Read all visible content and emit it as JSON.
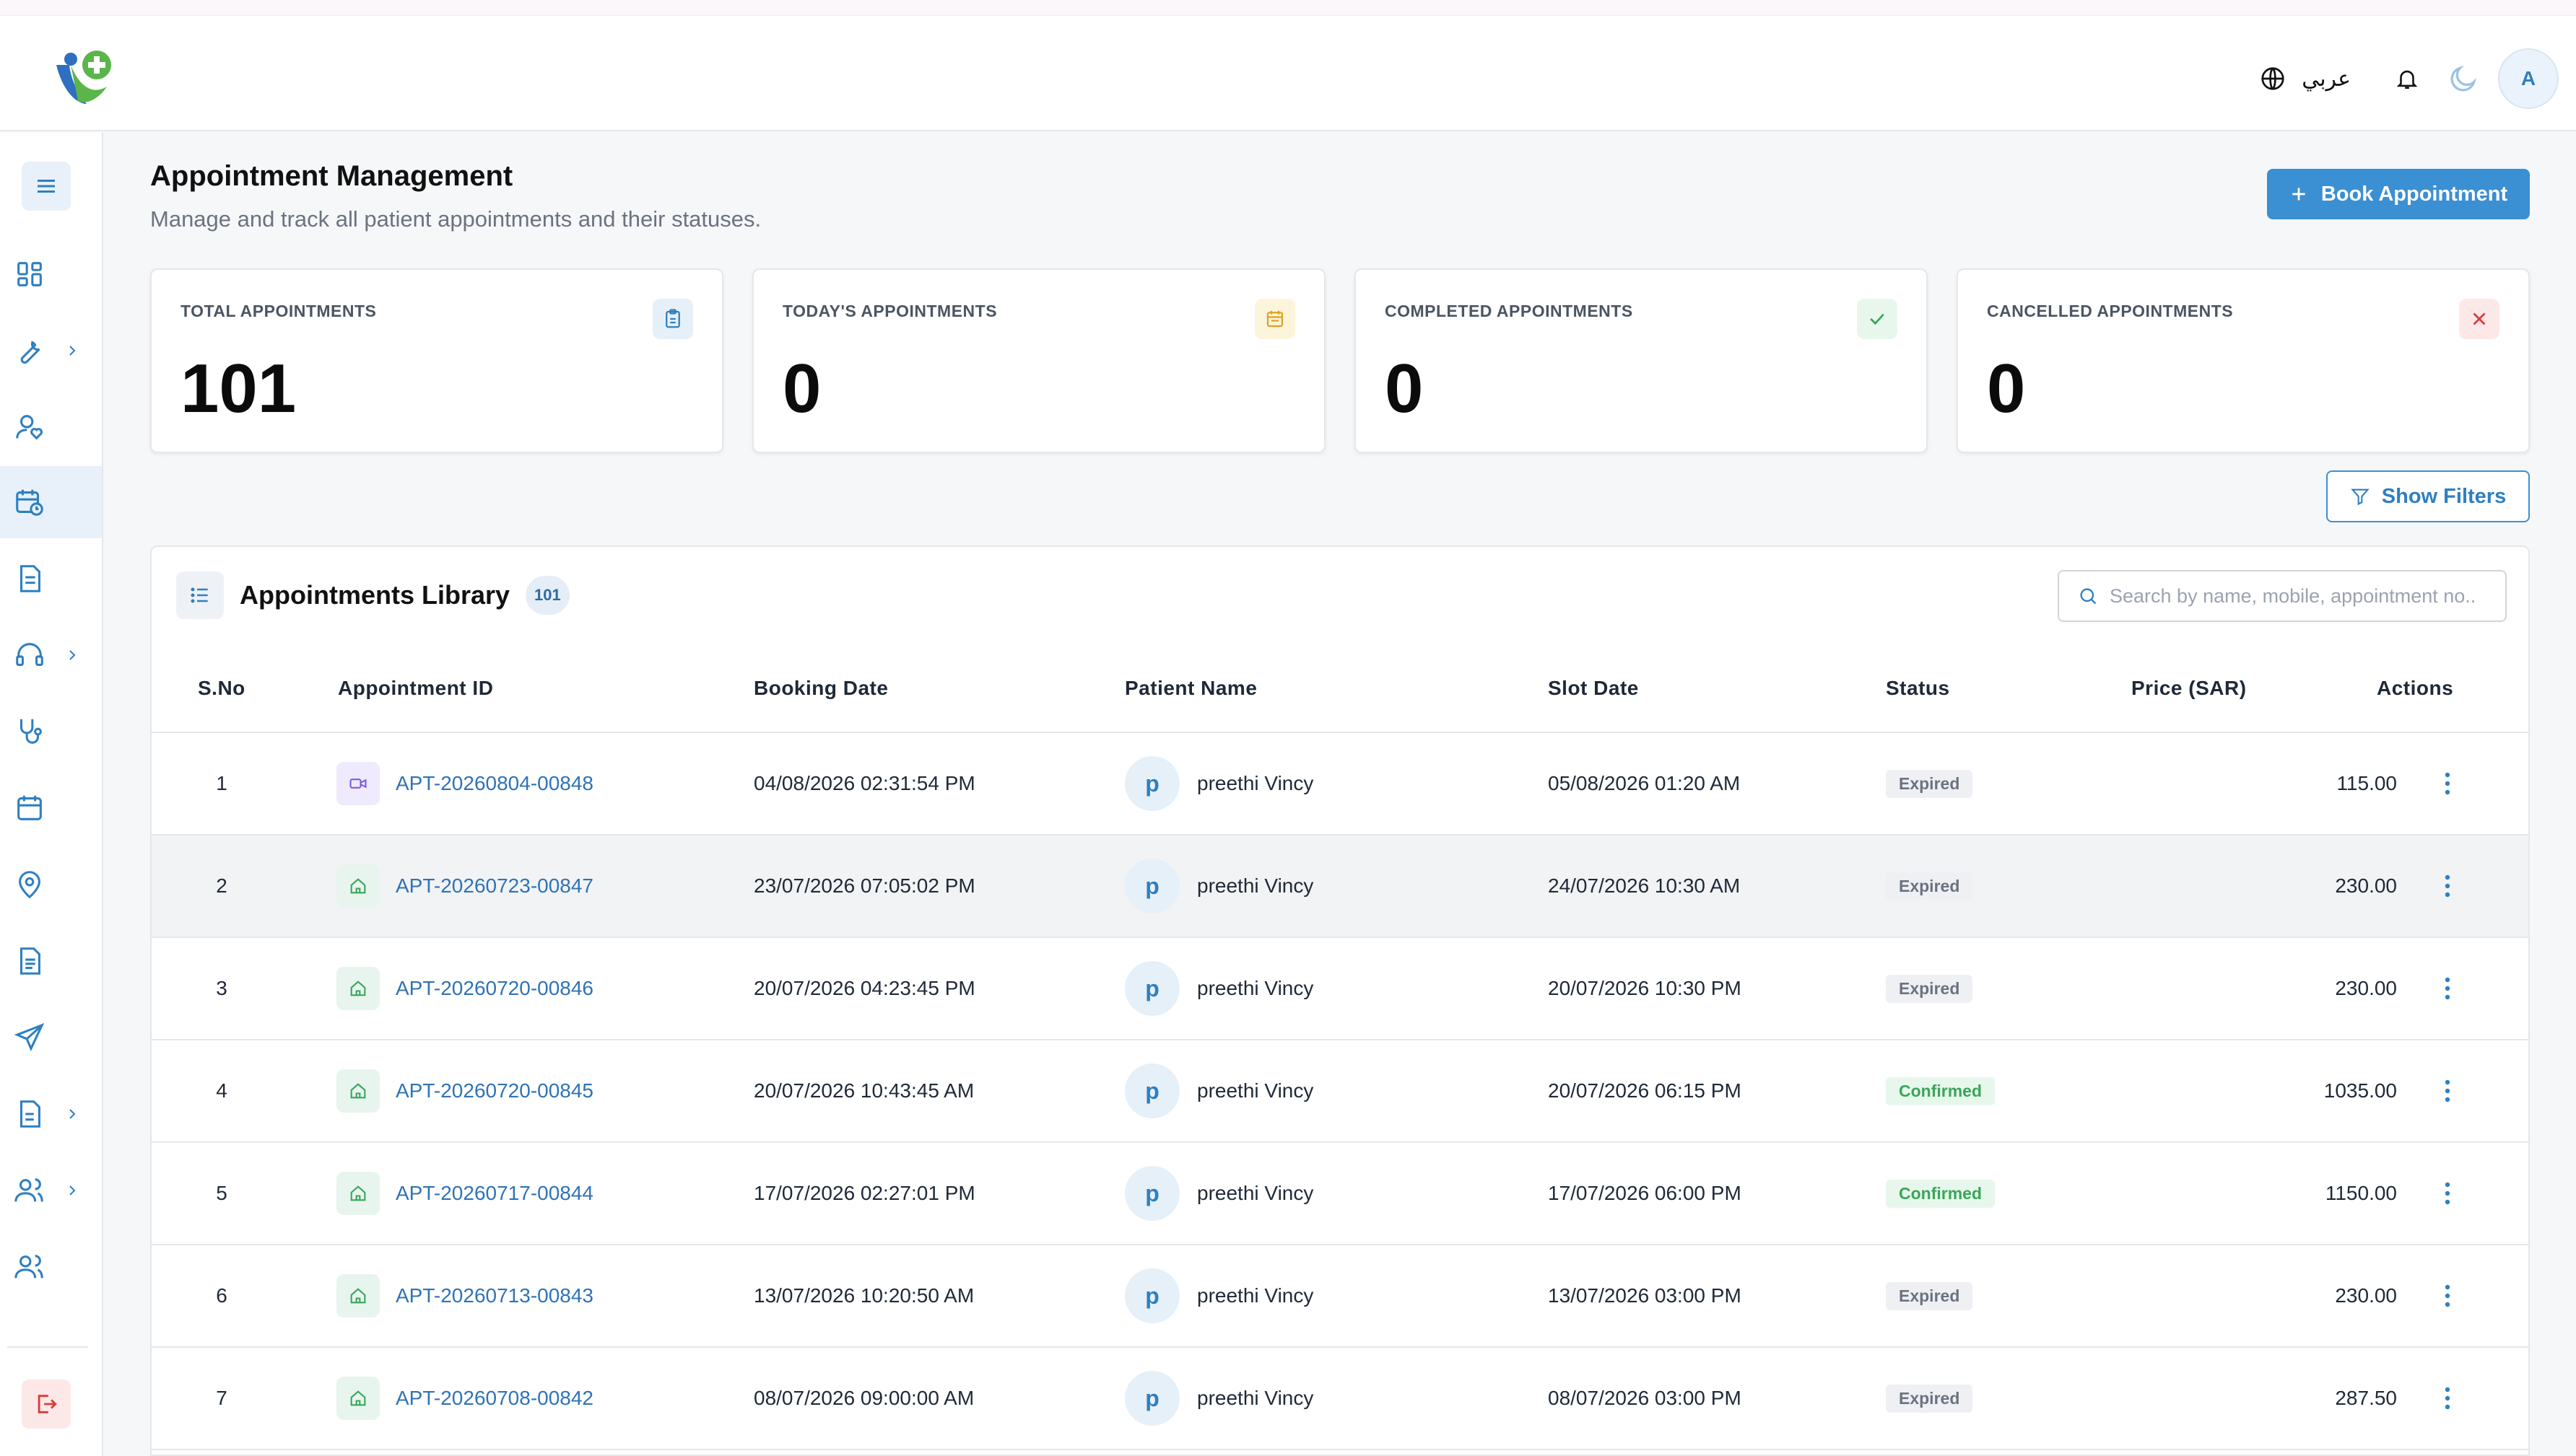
{
  "header": {
    "language_label": "عربي",
    "avatar_initial": "A"
  },
  "page": {
    "title": "Appointment Management",
    "subtitle": "Manage and track all patient appointments and their statuses.",
    "book_button_label": "Book Appointment",
    "show_filters_label": "Show Filters"
  },
  "stats": [
    {
      "label": "TOTAL APPOINTMENTS",
      "value": "101",
      "icon": "clipboard-icon",
      "color": "#2f7fc1"
    },
    {
      "label": "TODAY'S APPOINTMENTS",
      "value": "0",
      "icon": "calendar-icon",
      "color": "#e0a21b"
    },
    {
      "label": "COMPLETED APPOINTMENTS",
      "value": "0",
      "icon": "check-icon",
      "color": "#3aa55a"
    },
    {
      "label": "CANCELLED APPOINTMENTS",
      "value": "0",
      "icon": "x-icon",
      "color": "#dc3b3b"
    }
  ],
  "library": {
    "title": "Appointments Library",
    "count": "101",
    "search_placeholder": "Search by name, mobile, appointment no..",
    "columns": [
      "S.No",
      "Appointment ID",
      "Booking Date",
      "Patient Name",
      "Slot Date",
      "Status",
      "Price (SAR)",
      "Actions"
    ],
    "rows": [
      {
        "sno": "1",
        "type": "video-icon",
        "id": "APT-20260804-00848",
        "booking": "04/08/2026 02:31:54 PM",
        "initial": "p",
        "patient": "preethi Vincy",
        "slot": "05/08/2026 01:20 AM",
        "status": "Expired",
        "price": "115.00"
      },
      {
        "sno": "2",
        "type": "home-icon",
        "id": "APT-20260723-00847",
        "booking": "23/07/2026 07:05:02 PM",
        "initial": "p",
        "patient": "preethi Vincy",
        "slot": "24/07/2026 10:30 AM",
        "status": "Expired",
        "price": "230.00"
      },
      {
        "sno": "3",
        "type": "home-icon",
        "id": "APT-20260720-00846",
        "booking": "20/07/2026 04:23:45 PM",
        "initial": "p",
        "patient": "preethi Vincy",
        "slot": "20/07/2026 10:30 PM",
        "status": "Expired",
        "price": "230.00"
      },
      {
        "sno": "4",
        "type": "home-icon",
        "id": "APT-20260720-00845",
        "booking": "20/07/2026 10:43:45 AM",
        "initial": "p",
        "patient": "preethi Vincy",
        "slot": "20/07/2026 06:15 PM",
        "status": "Confirmed",
        "price": "1035.00"
      },
      {
        "sno": "5",
        "type": "home-icon",
        "id": "APT-20260717-00844",
        "booking": "17/07/2026 02:27:01 PM",
        "initial": "p",
        "patient": "preethi Vincy",
        "slot": "17/07/2026 06:00 PM",
        "status": "Confirmed",
        "price": "1150.00"
      },
      {
        "sno": "6",
        "type": "home-icon",
        "id": "APT-20260713-00843",
        "booking": "13/07/2026 10:20:50 AM",
        "initial": "p",
        "patient": "preethi Vincy",
        "slot": "13/07/2026 03:00 PM",
        "status": "Expired",
        "price": "230.00"
      },
      {
        "sno": "7",
        "type": "home-icon",
        "id": "APT-20260708-00842",
        "booking": "08/07/2026 09:00:00 AM",
        "initial": "p",
        "patient": "preethi Vincy",
        "slot": "08/07/2026 03:00 PM",
        "status": "Expired",
        "price": "287.50"
      }
    ]
  },
  "sidebar": {
    "items": [
      {
        "icon": "dashboard-icon",
        "has_chevron": false,
        "active": false
      },
      {
        "icon": "wrench-icon",
        "has_chevron": true,
        "active": false
      },
      {
        "icon": "user-heart-icon",
        "has_chevron": false,
        "active": false
      },
      {
        "icon": "calendar-clock-icon",
        "has_chevron": false,
        "active": true
      },
      {
        "icon": "document-icon",
        "has_chevron": false,
        "active": false
      },
      {
        "icon": "headset-icon",
        "has_chevron": true,
        "active": false
      },
      {
        "icon": "stethoscope-icon",
        "has_chevron": false,
        "active": false
      },
      {
        "icon": "calendar-icon",
        "has_chevron": false,
        "active": false
      },
      {
        "icon": "location-pin-icon",
        "has_chevron": false,
        "active": false
      },
      {
        "icon": "file-text-icon",
        "has_chevron": false,
        "active": false
      },
      {
        "icon": "send-icon",
        "has_chevron": false,
        "active": false
      },
      {
        "icon": "report-icon",
        "has_chevron": true,
        "active": false
      },
      {
        "icon": "users-icon",
        "has_chevron": true,
        "active": false
      },
      {
        "icon": "team-icon",
        "has_chevron": false,
        "active": false
      }
    ]
  }
}
